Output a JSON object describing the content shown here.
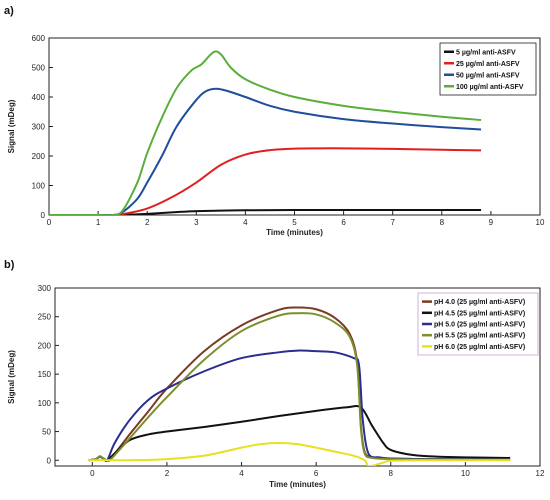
{
  "chart_data": [
    {
      "type": "line",
      "panel_label": "a)",
      "xlabel": "Time (minutes)",
      "ylabel": "Signal (mDeg)",
      "xlim": [
        0,
        10
      ],
      "ylim": [
        0,
        600
      ],
      "xticks": [
        0,
        1,
        2,
        3,
        4,
        5,
        6,
        7,
        8,
        9,
        10
      ],
      "yticks": [
        0,
        100,
        200,
        300,
        400,
        500,
        600
      ],
      "grid": false,
      "legend_position": "top-right",
      "series": [
        {
          "name": "5 µg/ml anti-ASFV",
          "color": "#111111",
          "x": [
            0,
            1,
            1.3,
            1.6,
            2,
            2.5,
            3,
            3.5,
            4,
            5,
            6,
            7,
            8,
            8.8
          ],
          "y": [
            0,
            0,
            0,
            1,
            4,
            9,
            13,
            15,
            16,
            17,
            17,
            17,
            17,
            17
          ]
        },
        {
          "name": "25 µg/ml anti-ASFV",
          "color": "#e02020",
          "x": [
            0,
            1,
            1.3,
            1.5,
            2,
            2.5,
            3,
            3.5,
            4,
            4.5,
            5,
            5.5,
            6,
            7,
            8,
            8.8
          ],
          "y": [
            0,
            0,
            0,
            3,
            22,
            60,
            110,
            170,
            205,
            220,
            225,
            226,
            226,
            224,
            221,
            219
          ]
        },
        {
          "name": "50 µg/ml anti-ASFV",
          "color": "#1f4e9a",
          "x": [
            0,
            1,
            1.3,
            1.5,
            1.8,
            2,
            2.3,
            2.6,
            3,
            3.2,
            3.4,
            3.6,
            4,
            4.5,
            5,
            6,
            7,
            8,
            8.8
          ],
          "y": [
            0,
            0,
            0,
            10,
            55,
            110,
            200,
            300,
            390,
            420,
            428,
            422,
            400,
            370,
            350,
            325,
            310,
            298,
            290
          ]
        },
        {
          "name": "100 µg/ml anti-ASFV",
          "color": "#5aae3a",
          "x": [
            0,
            1,
            1.3,
            1.5,
            1.8,
            2,
            2.3,
            2.6,
            2.9,
            3.1,
            3.35,
            3.5,
            3.7,
            4,
            4.5,
            5,
            6,
            7,
            8,
            8.8
          ],
          "y": [
            0,
            0,
            0,
            15,
            110,
            210,
            330,
            430,
            490,
            510,
            552,
            545,
            500,
            460,
            425,
            400,
            370,
            350,
            333,
            322
          ]
        }
      ]
    },
    {
      "type": "line",
      "panel_label": "b)",
      "xlabel": "Time (minutes)",
      "ylabel": "Signal (mDeg)",
      "xlim": [
        -1,
        12
      ],
      "ylim": [
        -10,
        300
      ],
      "xticks": [
        0,
        2,
        4,
        6,
        8,
        10,
        12
      ],
      "yticks": [
        0,
        50,
        100,
        150,
        200,
        250,
        300
      ],
      "grid": false,
      "legend_position": "top-right",
      "series": [
        {
          "name": "pH 4.0 (25 µg/ml anti-ASFV)",
          "color": "#7b3a22",
          "x": [
            -0.1,
            0.1,
            0.2,
            0.3,
            0.4,
            0.5,
            1,
            1.5,
            2,
            3,
            4,
            5,
            5.5,
            6,
            6.5,
            6.9,
            7.1,
            7.2,
            7.3,
            7.5,
            8,
            9,
            10,
            11.2
          ],
          "y": [
            0,
            2,
            7,
            3,
            0,
            3,
            45,
            85,
            125,
            190,
            235,
            262,
            266,
            263,
            248,
            220,
            170,
            60,
            15,
            5,
            3,
            2,
            1,
            1
          ]
        },
        {
          "name": "pH 4.5 (25 µg/ml anti-ASFV)",
          "color": "#111111",
          "x": [
            -0.1,
            0.1,
            0.2,
            0.3,
            0.4,
            0.6,
            1,
            1.5,
            2,
            3,
            4,
            5,
            6,
            6.8,
            7.2,
            7.5,
            7.8,
            8,
            8.5,
            9,
            10,
            11.2
          ],
          "y": [
            0,
            2,
            6,
            3,
            0,
            12,
            35,
            45,
            50,
            58,
            67,
            77,
            86,
            92,
            92,
            60,
            30,
            18,
            10,
            7,
            5,
            4
          ]
        },
        {
          "name": "pH 5.0 (25 µg/ml anti-ASFV)",
          "color": "#2a2e8e",
          "x": [
            -0.1,
            0.1,
            0.2,
            0.3,
            0.4,
            0.6,
            1,
            1.5,
            2,
            3,
            4,
            5,
            5.5,
            6,
            6.5,
            7,
            7.15,
            7.25,
            7.4,
            7.7,
            8,
            9,
            10,
            11.2
          ],
          "y": [
            0,
            2,
            6,
            3,
            0,
            30,
            70,
            105,
            125,
            155,
            178,
            188,
            191,
            190,
            188,
            178,
            165,
            70,
            12,
            5,
            3,
            2,
            2,
            1
          ]
        },
        {
          "name": "pH 5.5 (25 µg/ml anti-ASFV)",
          "color": "#7d8f2c",
          "x": [
            -0.1,
            0.1,
            0.2,
            0.3,
            0.4,
            0.5,
            1,
            1.5,
            2,
            3,
            4,
            5,
            5.5,
            6,
            6.5,
            6.9,
            7.1,
            7.2,
            7.3,
            7.5,
            8,
            9,
            10,
            11.2
          ],
          "y": [
            0,
            2,
            7,
            3,
            0,
            2,
            38,
            75,
            110,
            175,
            225,
            252,
            256,
            254,
            240,
            215,
            165,
            55,
            12,
            4,
            2,
            1,
            1,
            1
          ]
        },
        {
          "name": "pH 6.0 (25 µg/ml anti-ASFV)",
          "color": "#e8e020",
          "x": [
            -0.1,
            0.5,
            1,
            2,
            3,
            4,
            4.5,
            5,
            5.5,
            6,
            6.5,
            7,
            7.3,
            7.4,
            7.6,
            7.8,
            8,
            9,
            10,
            11.2
          ],
          "y": [
            0,
            0,
            0,
            2,
            8,
            22,
            28,
            30,
            28,
            22,
            15,
            8,
            0,
            -10,
            -8,
            -4,
            -1,
            0,
            0,
            0
          ]
        }
      ]
    }
  ]
}
